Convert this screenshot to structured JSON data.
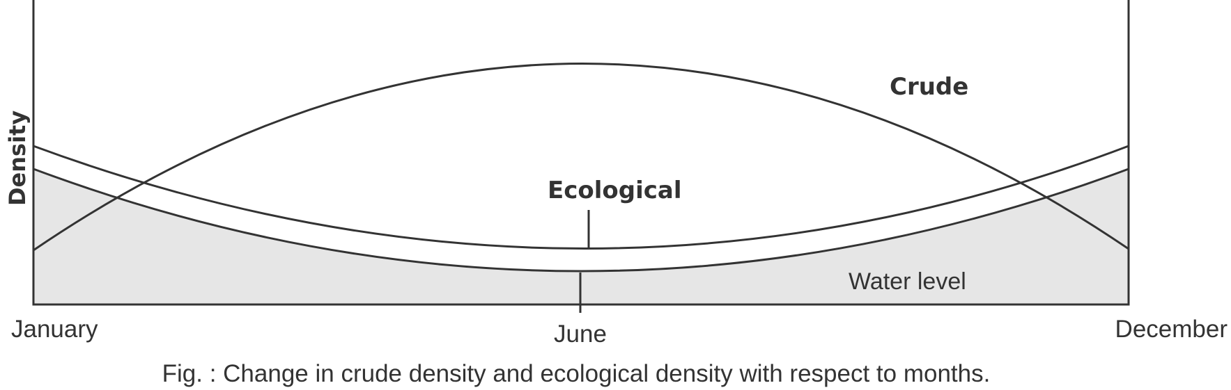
{
  "diagram": {
    "y_axis_label": "Density",
    "x_labels": {
      "start": "January",
      "middle": "June",
      "end": "December"
    },
    "curves": {
      "crude": "Crude",
      "ecological": "Ecological",
      "water_level": "Water level"
    },
    "caption": "Fig. : Change in crude density and ecological density with respect to months.",
    "colors": {
      "line": "#333333",
      "water_fill": "#e6e6e6",
      "background": "#ffffff"
    }
  }
}
